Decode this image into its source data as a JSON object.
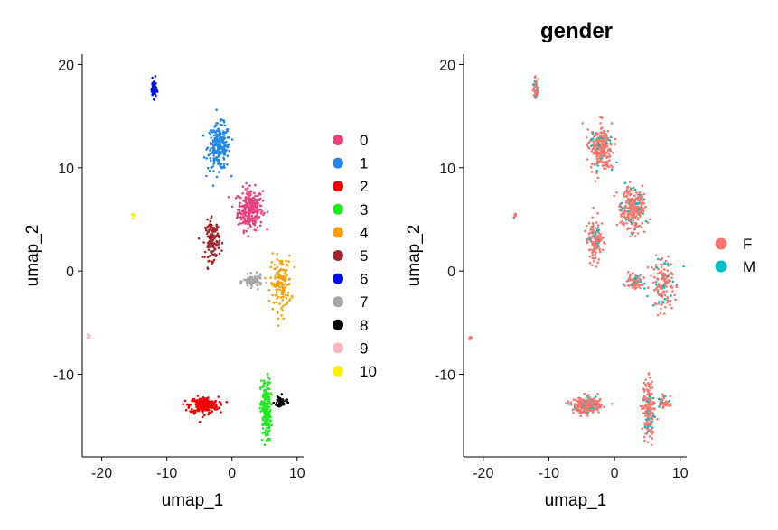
{
  "chart_data": [
    {
      "type": "scatter",
      "title": "",
      "xlabel": "umap_1",
      "ylabel": "umap_2",
      "xlim": [
        -23,
        11
      ],
      "ylim": [
        -18,
        21
      ],
      "xticks": [
        -20,
        -10,
        0,
        10
      ],
      "yticks": [
        -10,
        0,
        10,
        20
      ],
      "xtick_labels": [
        "-20",
        "-10",
        "0",
        "10"
      ],
      "ytick_labels": [
        "-10",
        "0",
        "10",
        "20"
      ],
      "legend_position": "right",
      "series": [
        {
          "name": "0",
          "color": "#E8417F",
          "clusters": [
            {
              "cx": 2.8,
              "cy": 6.0,
              "rx": 1.9,
              "ry": 2.0,
              "n": 260
            }
          ]
        },
        {
          "name": "1",
          "color": "#2389E8",
          "clusters": [
            {
              "cx": -2.0,
              "cy": 12.0,
              "rx": 1.7,
              "ry": 2.2,
              "n": 240
            }
          ]
        },
        {
          "name": "2",
          "color": "#F00000",
          "clusters": [
            {
              "cx": -4.3,
              "cy": -13.0,
              "rx": 2.2,
              "ry": 0.8,
              "n": 220
            }
          ]
        },
        {
          "name": "3",
          "color": "#1EEA1E",
          "clusters": [
            {
              "cx": 5.2,
              "cy": -13.5,
              "rx": 0.8,
              "ry": 3.0,
              "n": 180
            }
          ]
        },
        {
          "name": "4",
          "color": "#F5A20A",
          "clusters": [
            {
              "cx": 7.5,
              "cy": -1.2,
              "rx": 1.6,
              "ry": 2.6,
              "n": 150
            }
          ]
        },
        {
          "name": "5",
          "color": "#A0282D",
          "clusters": [
            {
              "cx": -3.0,
              "cy": 3.0,
              "rx": 1.1,
              "ry": 1.9,
              "n": 140
            }
          ]
        },
        {
          "name": "6",
          "color": "#0010E6",
          "clusters": [
            {
              "cx": -12.0,
              "cy": 17.7,
              "rx": 0.4,
              "ry": 0.9,
              "n": 60
            }
          ]
        },
        {
          "name": "7",
          "color": "#A6A6A6",
          "clusters": [
            {
              "cx": 3.2,
              "cy": -1.0,
              "rx": 1.4,
              "ry": 0.6,
              "n": 80
            }
          ]
        },
        {
          "name": "8",
          "color": "#000000",
          "clusters": [
            {
              "cx": 7.5,
              "cy": -12.7,
              "rx": 1.0,
              "ry": 0.6,
              "n": 40
            }
          ]
        },
        {
          "name": "9",
          "color": "#FFB6C1",
          "clusters": [
            {
              "cx": -22.0,
              "cy": -6.4,
              "rx": 0.2,
              "ry": 0.2,
              "n": 6
            }
          ]
        },
        {
          "name": "10",
          "color": "#FFF200",
          "clusters": [
            {
              "cx": -15.2,
              "cy": 5.4,
              "rx": 0.2,
              "ry": 0.3,
              "n": 8
            }
          ]
        }
      ]
    },
    {
      "type": "scatter",
      "title": "gender",
      "xlabel": "umap_1",
      "ylabel": "umap_2",
      "xlim": [
        -23,
        11
      ],
      "ylim": [
        -18,
        21
      ],
      "xticks": [
        -20,
        -10,
        0,
        10
      ],
      "yticks": [
        -10,
        0,
        10,
        20
      ],
      "xtick_labels": [
        "-20",
        "-10",
        "0",
        "10"
      ],
      "ytick_labels": [
        "-10",
        "0",
        "10",
        "20"
      ],
      "legend_position": "right",
      "series": [
        {
          "name": "F",
          "color": "#F8766D",
          "share": 0.85
        },
        {
          "name": "M",
          "color": "#00BFC4",
          "share": 0.15
        }
      ]
    }
  ]
}
